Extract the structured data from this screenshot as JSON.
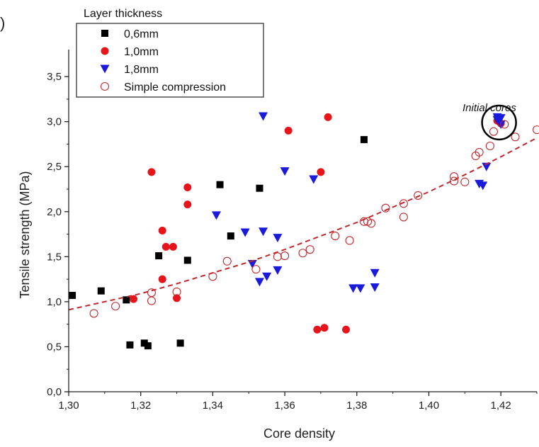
{
  "chart_data": {
    "type": "scatter",
    "title": "",
    "xlabel": "Core density",
    "ylabel": "Tensile strength (MPa)",
    "xlim": [
      1.3,
      1.43
    ],
    "ylim": [
      0.0,
      3.8
    ],
    "x_ticks": [
      "1,30",
      "1,32",
      "1,34",
      "1,36",
      "1,38",
      "1,40",
      "1,42"
    ],
    "x_tick_values": [
      1.3,
      1.32,
      1.34,
      1.36,
      1.38,
      1.4,
      1.42
    ],
    "y_ticks": [
      "0,0",
      "0,5",
      "1,0",
      "1,5",
      "2,0",
      "2,5",
      "3,0",
      "3,5"
    ],
    "y_tick_values": [
      0.0,
      0.5,
      1.0,
      1.5,
      2.0,
      2.5,
      3.0,
      3.5
    ],
    "grid": false,
    "legend": {
      "title": "Layer thickness",
      "placement": "top-left",
      "entries": [
        "0,6mm",
        "1,0mm",
        "1,8mm",
        "Simple compression"
      ]
    },
    "annotation": "Initial cores",
    "panel_label_fragment": ")",
    "series": [
      {
        "name": "0,6mm",
        "marker": "square",
        "color": "#000000",
        "points": [
          [
            1.301,
            1.07
          ],
          [
            1.309,
            1.12
          ],
          [
            1.316,
            1.02
          ],
          [
            1.317,
            0.52
          ],
          [
            1.321,
            0.54
          ],
          [
            1.322,
            0.51
          ],
          [
            1.325,
            1.51
          ],
          [
            1.331,
            0.54
          ],
          [
            1.333,
            1.46
          ],
          [
            1.342,
            2.3
          ],
          [
            1.345,
            1.73
          ],
          [
            1.353,
            2.26
          ],
          [
            1.382,
            2.8
          ]
        ]
      },
      {
        "name": "1,0mm",
        "marker": "circle",
        "color": "#e8141c",
        "points": [
          [
            1.318,
            1.03
          ],
          [
            1.323,
            2.44
          ],
          [
            1.326,
            1.79
          ],
          [
            1.326,
            1.25
          ],
          [
            1.327,
            1.61
          ],
          [
            1.329,
            1.61
          ],
          [
            1.33,
            1.04
          ],
          [
            1.333,
            2.27
          ],
          [
            1.333,
            2.08
          ],
          [
            1.361,
            2.9
          ],
          [
            1.369,
            0.69
          ],
          [
            1.37,
            2.44
          ],
          [
            1.371,
            0.71
          ],
          [
            1.372,
            3.05
          ],
          [
            1.377,
            0.69
          ],
          [
            1.419,
            3.01
          ],
          [
            1.42,
            2.98
          ]
        ]
      },
      {
        "name": "1,8mm",
        "marker": "triangle-down",
        "color": "#1a1adc",
        "points": [
          [
            1.341,
            1.96
          ],
          [
            1.349,
            1.77
          ],
          [
            1.351,
            1.42
          ],
          [
            1.353,
            1.22
          ],
          [
            1.354,
            3.06
          ],
          [
            1.354,
            1.78
          ],
          [
            1.355,
            1.28
          ],
          [
            1.358,
            1.71
          ],
          [
            1.358,
            1.35
          ],
          [
            1.36,
            2.45
          ],
          [
            1.368,
            2.36
          ],
          [
            1.379,
            1.15
          ],
          [
            1.381,
            1.15
          ],
          [
            1.385,
            1.32
          ],
          [
            1.385,
            1.16
          ],
          [
            1.414,
            2.31
          ],
          [
            1.415,
            2.29
          ],
          [
            1.416,
            2.5
          ],
          [
            1.419,
            3.05
          ],
          [
            1.419,
            3.02
          ],
          [
            1.42,
            3.04
          ],
          [
            1.42,
            2.97
          ]
        ]
      },
      {
        "name": "Simple compression",
        "marker": "open-circle",
        "color": "#c0282c",
        "points": [
          [
            1.307,
            0.87
          ],
          [
            1.313,
            0.95
          ],
          [
            1.323,
            1.01
          ],
          [
            1.323,
            1.1
          ],
          [
            1.33,
            1.11
          ],
          [
            1.34,
            1.28
          ],
          [
            1.344,
            1.45
          ],
          [
            1.352,
            1.36
          ],
          [
            1.358,
            1.5
          ],
          [
            1.36,
            1.51
          ],
          [
            1.365,
            1.54
          ],
          [
            1.367,
            1.58
          ],
          [
            1.374,
            1.73
          ],
          [
            1.378,
            1.68
          ],
          [
            1.382,
            1.89
          ],
          [
            1.383,
            1.89
          ],
          [
            1.384,
            1.87
          ],
          [
            1.388,
            2.04
          ],
          [
            1.393,
            1.94
          ],
          [
            1.393,
            2.09
          ],
          [
            1.397,
            2.18
          ],
          [
            1.407,
            2.34
          ],
          [
            1.407,
            2.39
          ],
          [
            1.41,
            2.33
          ],
          [
            1.413,
            2.62
          ],
          [
            1.414,
            2.66
          ],
          [
            1.417,
            2.73
          ],
          [
            1.418,
            2.89
          ],
          [
            1.421,
            2.97
          ],
          [
            1.424,
            2.83
          ],
          [
            1.43,
            2.91
          ]
        ]
      },
      {
        "name": "",
        "type": "fit-curve",
        "style": "dashed",
        "color": "#c0282c",
        "points": [
          [
            1.3,
            0.91
          ],
          [
            1.31,
            1.0
          ],
          [
            1.32,
            1.09
          ],
          [
            1.33,
            1.2
          ],
          [
            1.34,
            1.32
          ],
          [
            1.35,
            1.44
          ],
          [
            1.36,
            1.58
          ],
          [
            1.37,
            1.73
          ],
          [
            1.38,
            1.88
          ],
          [
            1.39,
            2.05
          ],
          [
            1.4,
            2.22
          ],
          [
            1.41,
            2.41
          ],
          [
            1.42,
            2.61
          ],
          [
            1.43,
            2.82
          ]
        ]
      }
    ]
  }
}
